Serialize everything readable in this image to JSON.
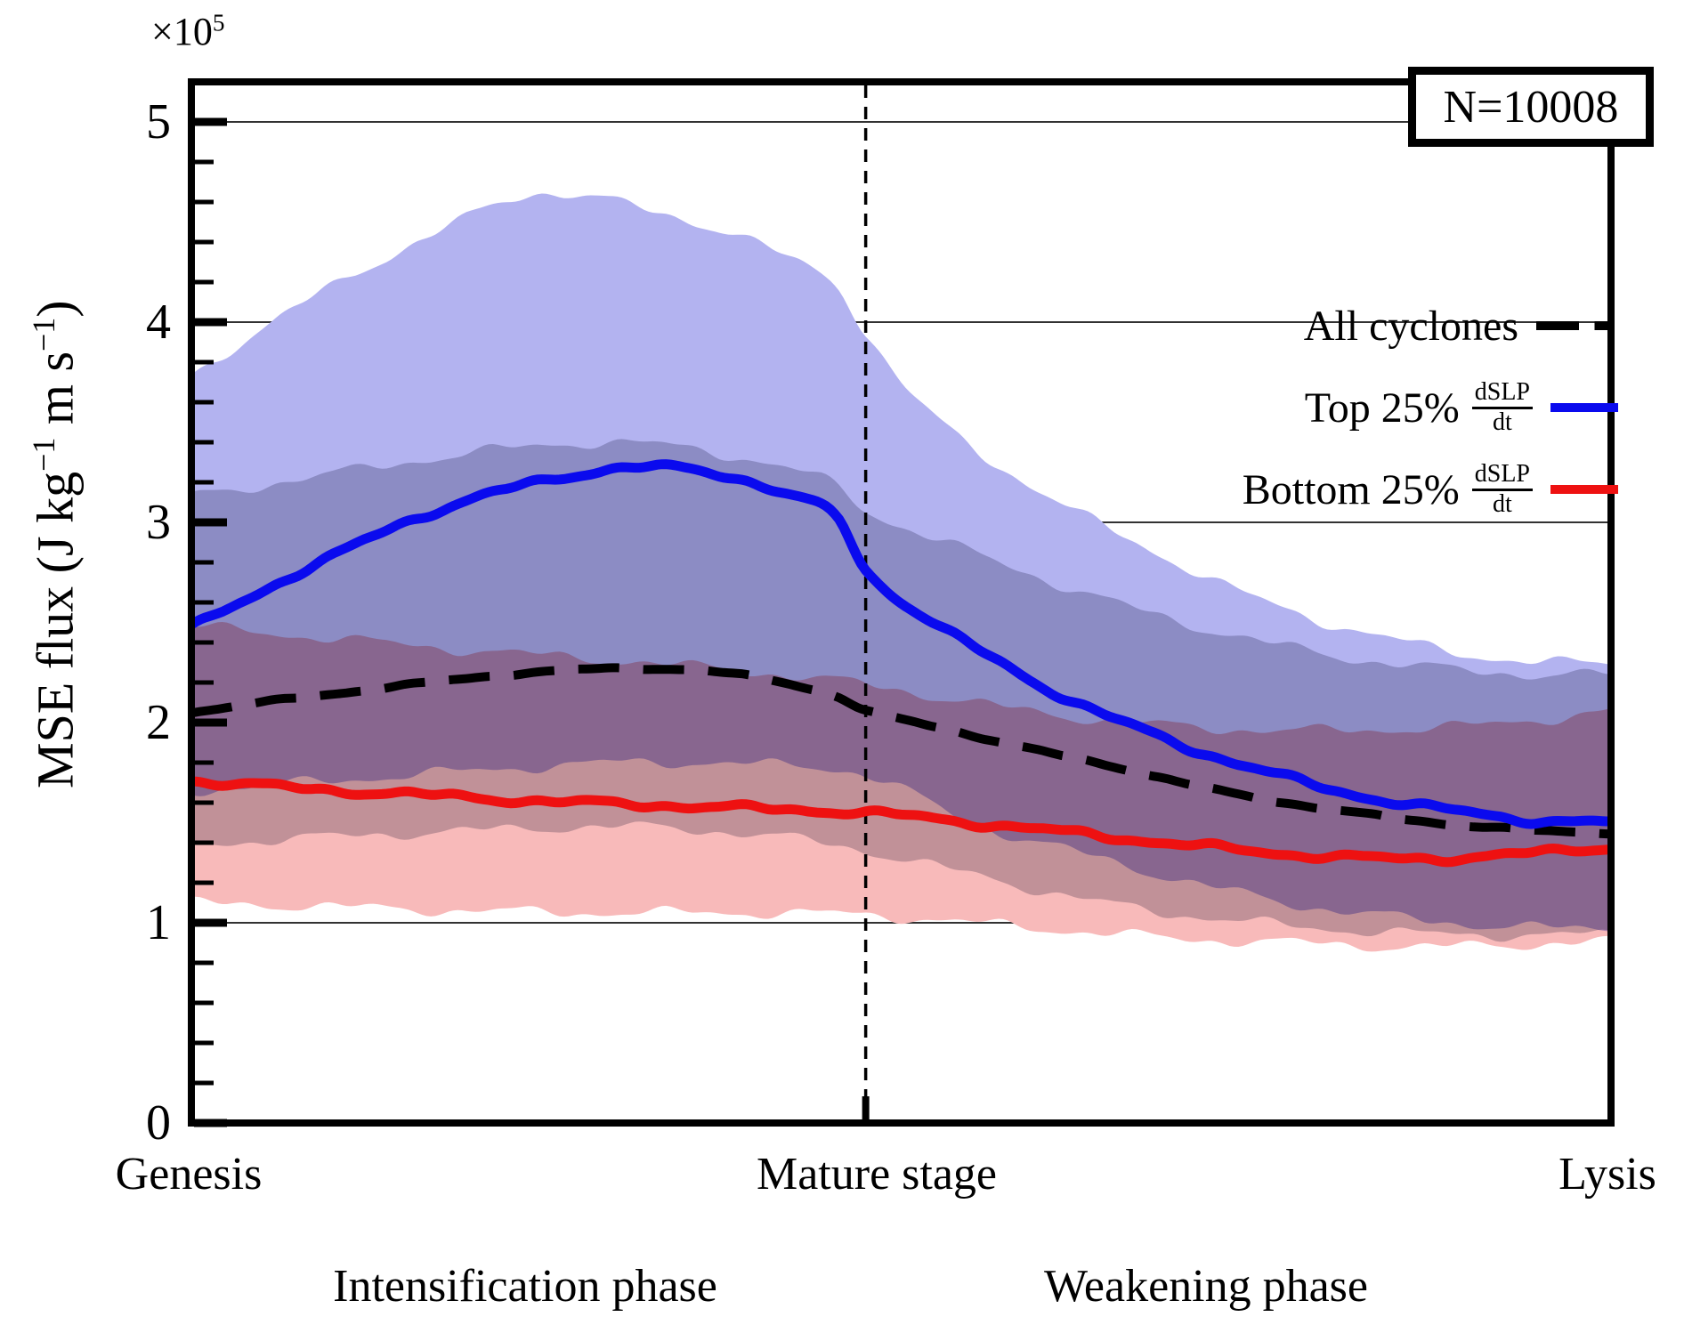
{
  "annotation": {
    "n_label": "N=10008"
  },
  "axes": {
    "offset_base": "×10",
    "offset_exp": "5",
    "ylabel": {
      "p1": "MSE flux (J kg",
      "s1": "−1",
      "p2": " m s",
      "s2": "−1",
      "p3": ")"
    },
    "xticks": {
      "genesis": "Genesis",
      "mature": "Mature stage",
      "lysis": "Lysis"
    },
    "phases": {
      "intensification": "Intensification phase",
      "weakening": "Weakening phase"
    }
  },
  "legend": {
    "entries": [
      {
        "label": "All cyclones"
      },
      {
        "label": "Top 25%",
        "frac_num": "dSLP",
        "frac_den": "dt"
      },
      {
        "label": "Bottom 25%",
        "frac_num": "dSLP",
        "frac_den": "dt"
      }
    ]
  },
  "chart_data": {
    "type": "line",
    "title": "",
    "ylabel": "MSE flux (J kg^-1 m s^-1), units of 10^5",
    "xlabel": "cyclone life cycle (Genesis -> Mature stage -> Lysis)",
    "ylim": [
      0,
      5.2
    ],
    "y_ticks": [
      "0",
      "1",
      "2",
      "3",
      "4",
      "5"
    ],
    "grid": "horizontal-major",
    "grid_color": "#000000",
    "mature_x_frac": 0.475,
    "n_label": "N=10008",
    "legend_position": "upper right, frameless; N box upper right corner",
    "series": [
      {
        "name": "All cyclones",
        "style": "dashed",
        "color": "#000000",
        "width": 10,
        "points": [
          [
            0,
            2.05
          ],
          [
            0.06,
            2.11
          ],
          [
            0.12,
            2.16
          ],
          [
            0.18,
            2.21
          ],
          [
            0.24,
            2.25
          ],
          [
            0.3,
            2.27
          ],
          [
            0.36,
            2.26
          ],
          [
            0.41,
            2.21
          ],
          [
            0.455,
            2.13
          ],
          [
            0.475,
            2.06
          ],
          [
            0.53,
            1.97
          ],
          [
            0.59,
            1.87
          ],
          [
            0.65,
            1.78
          ],
          [
            0.71,
            1.68
          ],
          [
            0.77,
            1.6
          ],
          [
            0.83,
            1.54
          ],
          [
            0.89,
            1.49
          ],
          [
            0.95,
            1.46
          ],
          [
            1,
            1.45
          ]
        ]
      },
      {
        "name": "Top 25% dSLP/dt",
        "style": "solid",
        "color": "#0a0aee",
        "width": 11,
        "points": [
          [
            0,
            2.47
          ],
          [
            0.05,
            2.66
          ],
          [
            0.1,
            2.83
          ],
          [
            0.15,
            3.0
          ],
          [
            0.2,
            3.12
          ],
          [
            0.25,
            3.21
          ],
          [
            0.3,
            3.27
          ],
          [
            0.34,
            3.27
          ],
          [
            0.38,
            3.23
          ],
          [
            0.42,
            3.14
          ],
          [
            0.455,
            3.02
          ],
          [
            0.475,
            2.76
          ],
          [
            0.5,
            2.61
          ],
          [
            0.55,
            2.38
          ],
          [
            0.6,
            2.18
          ],
          [
            0.65,
            2.02
          ],
          [
            0.7,
            1.88
          ],
          [
            0.75,
            1.77
          ],
          [
            0.8,
            1.67
          ],
          [
            0.85,
            1.6
          ],
          [
            0.9,
            1.55
          ],
          [
            0.95,
            1.51
          ],
          [
            1,
            1.5
          ]
        ]
      },
      {
        "name": "Bottom 25% dSLP/dt",
        "style": "solid",
        "color": "#ee1111",
        "width": 11,
        "points": [
          [
            0,
            1.71
          ],
          [
            0.08,
            1.67
          ],
          [
            0.16,
            1.64
          ],
          [
            0.24,
            1.61
          ],
          [
            0.32,
            1.59
          ],
          [
            0.4,
            1.57
          ],
          [
            0.475,
            1.55
          ],
          [
            0.55,
            1.5
          ],
          [
            0.62,
            1.45
          ],
          [
            0.7,
            1.39
          ],
          [
            0.78,
            1.34
          ],
          [
            0.86,
            1.32
          ],
          [
            0.93,
            1.34
          ],
          [
            1,
            1.38
          ]
        ]
      }
    ],
    "bands": [
      {
        "name": "top25-iqr",
        "fill": "#b3b3f0",
        "upper": [
          [
            0,
            3.73
          ],
          [
            0.05,
            3.97
          ],
          [
            0.1,
            4.18
          ],
          [
            0.15,
            4.37
          ],
          [
            0.2,
            4.54
          ],
          [
            0.24,
            4.64
          ],
          [
            0.28,
            4.63
          ],
          [
            0.33,
            4.54
          ],
          [
            0.38,
            4.45
          ],
          [
            0.42,
            4.32
          ],
          [
            0.455,
            4.18
          ],
          [
            0.475,
            3.95
          ],
          [
            0.51,
            3.62
          ],
          [
            0.55,
            3.37
          ],
          [
            0.6,
            3.15
          ],
          [
            0.65,
            2.95
          ],
          [
            0.7,
            2.78
          ],
          [
            0.75,
            2.62
          ],
          [
            0.8,
            2.5
          ],
          [
            0.85,
            2.41
          ],
          [
            0.9,
            2.34
          ],
          [
            0.95,
            2.3
          ],
          [
            1,
            2.3
          ]
        ],
        "lower": [
          [
            0,
            1.66
          ],
          [
            0.1,
            1.71
          ],
          [
            0.2,
            1.76
          ],
          [
            0.3,
            1.8
          ],
          [
            0.4,
            1.79
          ],
          [
            0.475,
            1.74
          ],
          [
            0.55,
            1.5
          ],
          [
            0.62,
            1.36
          ],
          [
            0.7,
            1.21
          ],
          [
            0.78,
            1.09
          ],
          [
            0.86,
            1.02
          ],
          [
            0.93,
            0.98
          ],
          [
            1,
            0.97
          ]
        ]
      },
      {
        "name": "all-cyclones-iqr",
        "fill": "#c7c7d1",
        "upper": [
          [
            0,
            3.13
          ],
          [
            0.08,
            3.22
          ],
          [
            0.16,
            3.31
          ],
          [
            0.24,
            3.38
          ],
          [
            0.3,
            3.4
          ],
          [
            0.36,
            3.36
          ],
          [
            0.42,
            3.27
          ],
          [
            0.455,
            3.18
          ],
          [
            0.475,
            3.06
          ],
          [
            0.52,
            2.93
          ],
          [
            0.58,
            2.77
          ],
          [
            0.65,
            2.6
          ],
          [
            0.72,
            2.46
          ],
          [
            0.8,
            2.34
          ],
          [
            0.88,
            2.27
          ],
          [
            0.95,
            2.24
          ],
          [
            1,
            2.24
          ]
        ],
        "lower": [
          [
            0,
            1.39
          ],
          [
            0.1,
            1.43
          ],
          [
            0.2,
            1.46
          ],
          [
            0.3,
            1.48
          ],
          [
            0.4,
            1.44
          ],
          [
            0.475,
            1.36
          ],
          [
            0.55,
            1.24
          ],
          [
            0.65,
            1.09
          ],
          [
            0.75,
            1.0
          ],
          [
            0.85,
            0.95
          ],
          [
            0.93,
            0.94
          ],
          [
            1,
            0.94
          ]
        ]
      },
      {
        "name": "bottom25-iqr",
        "fill": "#f8baba",
        "upper": [
          [
            0,
            2.48
          ],
          [
            0.1,
            2.42
          ],
          [
            0.2,
            2.36
          ],
          [
            0.3,
            2.31
          ],
          [
            0.4,
            2.25
          ],
          [
            0.475,
            2.19
          ],
          [
            0.55,
            2.1
          ],
          [
            0.62,
            2.03
          ],
          [
            0.7,
            1.98
          ],
          [
            0.78,
            1.96
          ],
          [
            0.86,
            1.97
          ],
          [
            0.93,
            2.0
          ],
          [
            1,
            2.06
          ]
        ],
        "lower": [
          [
            0,
            1.1
          ],
          [
            0.1,
            1.08
          ],
          [
            0.2,
            1.06
          ],
          [
            0.3,
            1.05
          ],
          [
            0.4,
            1.05
          ],
          [
            0.475,
            1.04
          ],
          [
            0.55,
            1.0
          ],
          [
            0.62,
            0.96
          ],
          [
            0.7,
            0.92
          ],
          [
            0.78,
            0.9
          ],
          [
            0.86,
            0.88
          ],
          [
            0.93,
            0.89
          ],
          [
            1,
            0.91
          ]
        ]
      }
    ]
  }
}
